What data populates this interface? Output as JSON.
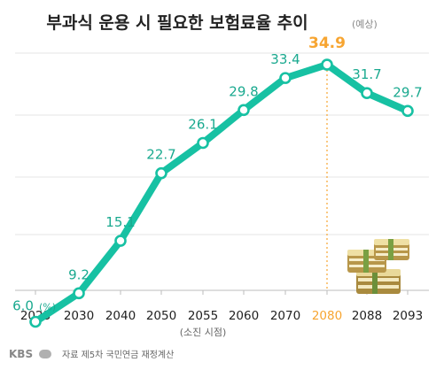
{
  "title": "부과식 운용 시 필요한 보험료율 추이",
  "title_note": "(예상)",
  "note": "(소진 시점)",
  "source": "자료 제5차 국민연금 재정계산",
  "logo": "KBS",
  "colors": {
    "line": "#17c1a3",
    "highlight": "#f7a531",
    "text": "#222222",
    "muted": "#666666",
    "grid": "#e4e4e4"
  },
  "chart_data": {
    "type": "line",
    "categories": [
      "2023",
      "2030",
      "2040",
      "2050",
      "2055",
      "2060",
      "2070",
      "2080",
      "2088",
      "2093"
    ],
    "values": [
      6.0,
      9.2,
      15.1,
      22.7,
      26.1,
      29.8,
      33.4,
      34.9,
      31.7,
      29.7
    ],
    "value_labels": [
      "6.0",
      "9.2",
      "15.1",
      "22.7",
      "26.1",
      "29.8",
      "33.4",
      "34.9",
      "31.7",
      "29.7"
    ],
    "unit_label": "(%)",
    "highlight_category": "2080",
    "ylim": [
      0,
      40
    ],
    "grid": true
  }
}
